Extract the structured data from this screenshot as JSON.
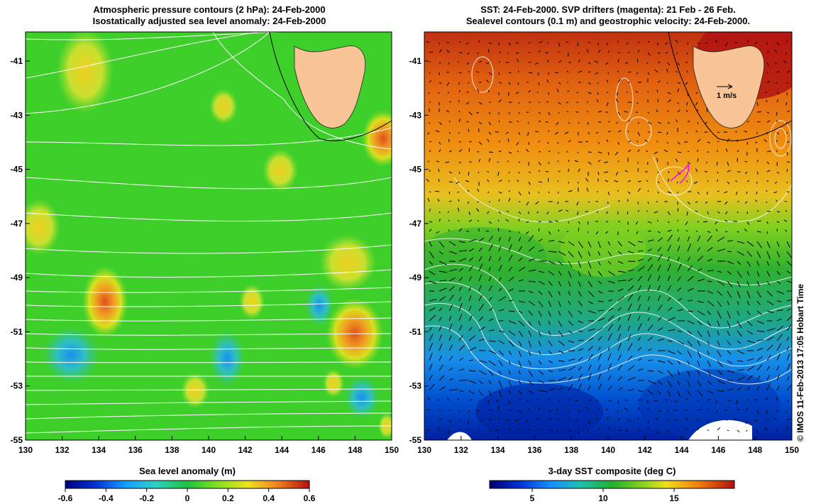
{
  "left_panel": {
    "title_line1": "Atmospheric pressure contours (2 hPa): 24-Feb-2000",
    "title_line2": "Isostatically adjusted sea level anomaly: 24-Feb-2000",
    "x_ticks": [
      "130",
      "132",
      "134",
      "136",
      "138",
      "140",
      "142",
      "144",
      "146",
      "148",
      "150"
    ],
    "y_ticks": [
      "-41",
      "-43",
      "-45",
      "-47",
      "-49",
      "-51",
      "-53",
      "-55"
    ],
    "colorbar_label": "Sea level anomaly (m)",
    "colorbar_ticks": [
      "-0.6",
      "-0.4",
      "-0.2",
      "0",
      "0.2",
      "0.4",
      "0.6"
    ]
  },
  "right_panel": {
    "title_line1": "SST: 24-Feb-2000. SVP drifters (magenta): 21 Feb - 26 Feb.",
    "title_line2": "Sealevel contours (0.1 m) and geostrophic velocity: 24-Feb-2000.",
    "x_ticks": [
      "130",
      "132",
      "134",
      "136",
      "138",
      "140",
      "142",
      "144",
      "146",
      "148",
      "150"
    ],
    "y_ticks": [
      "-41",
      "-43",
      "-45",
      "-47",
      "-49",
      "-51",
      "-53",
      "-55"
    ],
    "velocity_scale_label": "1 m/s",
    "colorbar_label": "3-day SST composite (deg C)",
    "colorbar_ticks": [
      "5",
      "10",
      "15"
    ]
  },
  "copyright": "© IMOS 11-Feb-2013 17:05 Hobart Time",
  "colors": {
    "land": "#f9c596",
    "sla_map_base": "#3fcf2a",
    "contour": "#ffffff",
    "drifter": "#ff00ff"
  }
}
